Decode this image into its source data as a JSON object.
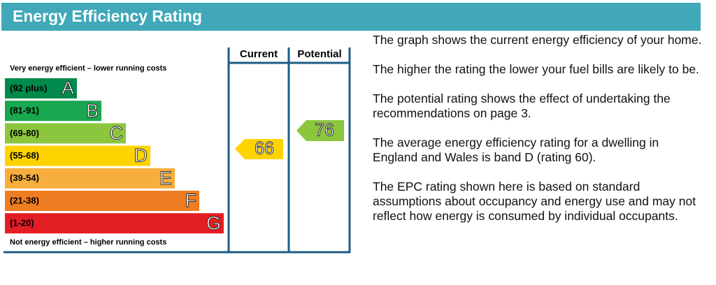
{
  "header": {
    "title": "Energy Efficiency Rating"
  },
  "top_note": "Very energy efficient – lower running costs",
  "bottom_note": "Not energy efficient – higher running costs",
  "columns": [
    "Current",
    "Potential"
  ],
  "bands": [
    {
      "range": "(92 plus)",
      "letter": "A",
      "color": "#008a4b"
    },
    {
      "range": "(81-91)",
      "letter": "B",
      "color": "#19a74f"
    },
    {
      "range": "(69-80)",
      "letter": "C",
      "color": "#8cc63f"
    },
    {
      "range": "(55-68)",
      "letter": "D",
      "color": "#ffd300"
    },
    {
      "range": "(39-54)",
      "letter": "E",
      "color": "#f8ae3c"
    },
    {
      "range": "(21-38)",
      "letter": "F",
      "color": "#ef7d22"
    },
    {
      "range": "(1-20)",
      "letter": "G",
      "color": "#e31d24"
    }
  ],
  "current": 66,
  "potential": 76,
  "paragraphs": [
    "The graph shows the current energy efficiency of your home.",
    "The higher the rating the lower your fuel bills are likely to be.",
    "The potential rating shows the effect of undertaking the recommendations on page 3.",
    "The average energy efficiency rating for a dwelling in England and Wales is band D (rating 60).",
    "The EPC rating shown here is based on standard assumptions about occupancy and energy use and may not reflect how energy is consumed by individual occupants."
  ]
}
